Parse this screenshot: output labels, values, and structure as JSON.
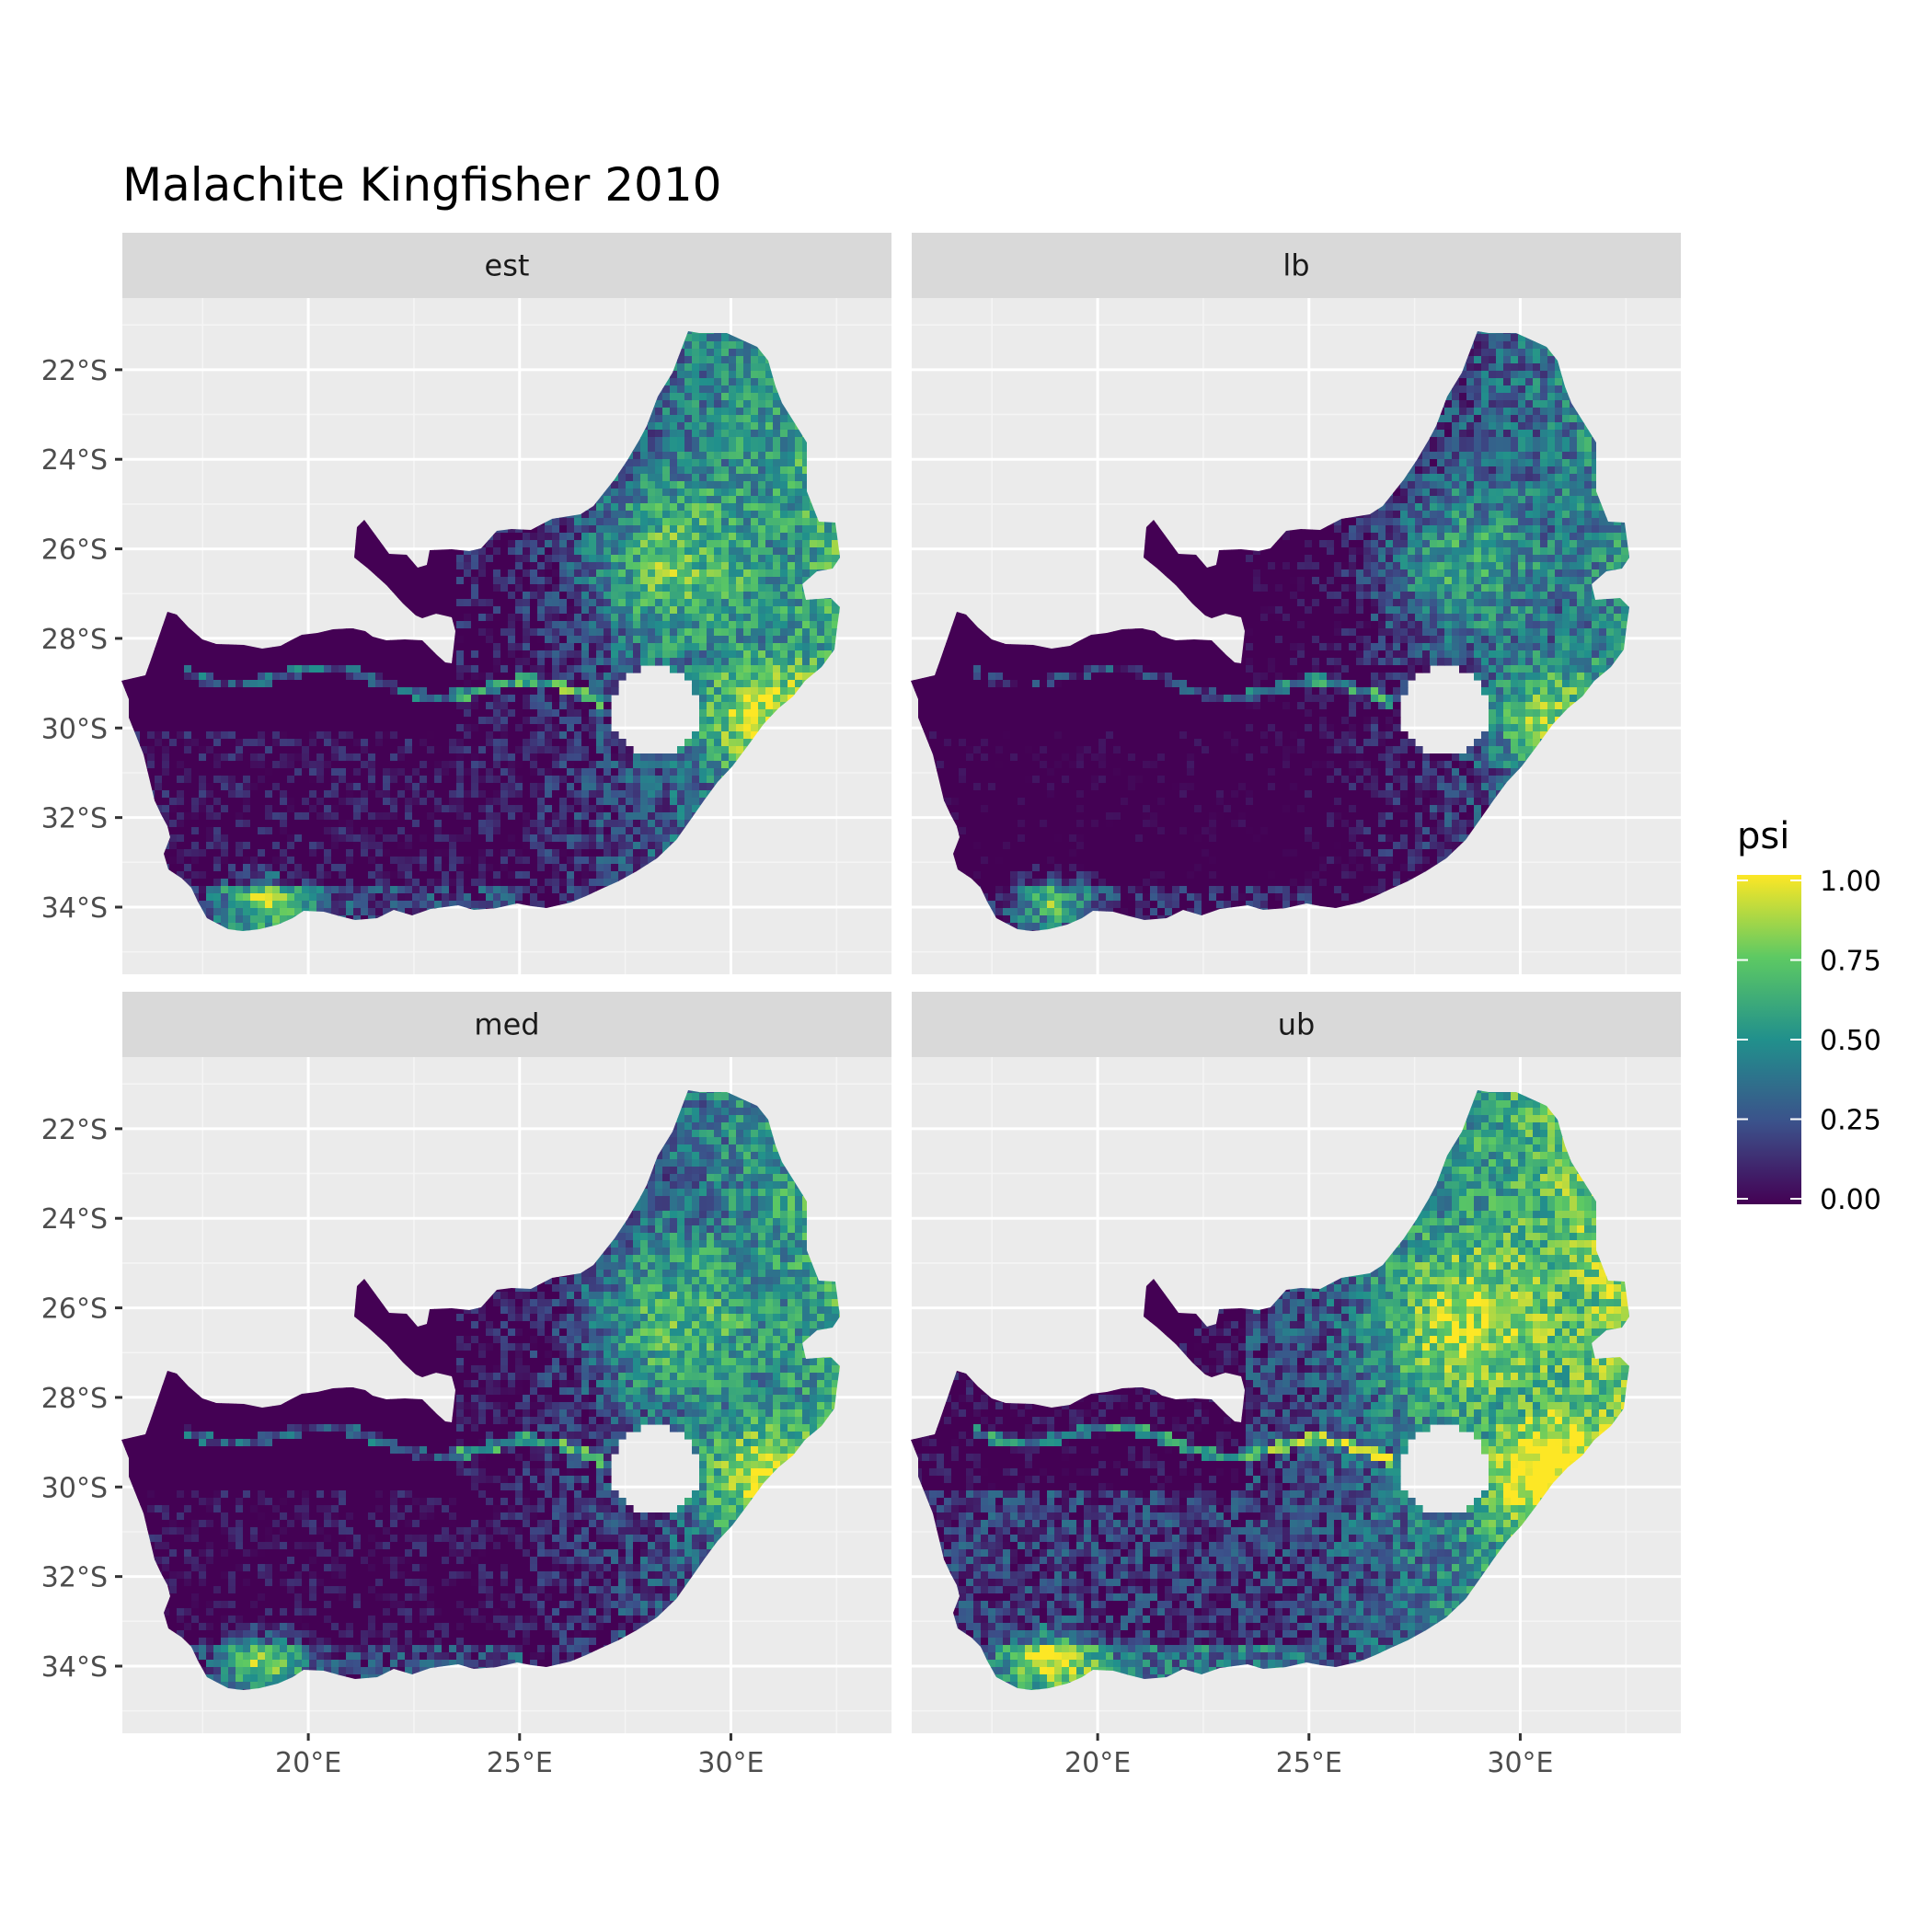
{
  "title": "Malachite Kingfisher 2010",
  "panels": [
    {
      "label": "est"
    },
    {
      "label": "lb"
    },
    {
      "label": "med"
    },
    {
      "label": "ub"
    }
  ],
  "y_ticks": [
    {
      "value": -22,
      "label": "22°S"
    },
    {
      "value": -24,
      "label": "24°S"
    },
    {
      "value": -26,
      "label": "26°S"
    },
    {
      "value": -28,
      "label": "28°S"
    },
    {
      "value": -30,
      "label": "30°S"
    },
    {
      "value": -32,
      "label": "32°S"
    },
    {
      "value": -34,
      "label": "34°S"
    }
  ],
  "x_ticks": [
    {
      "value": 20,
      "label": "20°E"
    },
    {
      "value": 25,
      "label": "25°E"
    },
    {
      "value": 30,
      "label": "30°E"
    }
  ],
  "legend": {
    "title": "psi",
    "ticks": [
      "0.00",
      "0.25",
      "0.50",
      "0.75",
      "1.00"
    ],
    "colormap": "viridis",
    "colors": [
      "#440154",
      "#3b528b",
      "#21908c",
      "#5dc963",
      "#fde725"
    ]
  },
  "map_data": {
    "type": "faceted raster map",
    "region": "South Africa",
    "variable": "psi",
    "value_range": [
      0,
      1
    ],
    "xlim": [
      15.6,
      33.8
    ],
    "ylim": [
      -35.5,
      -20.4
    ],
    "panel_background": "#ebebeb",
    "strip_background": "#d9d9d9"
  }
}
